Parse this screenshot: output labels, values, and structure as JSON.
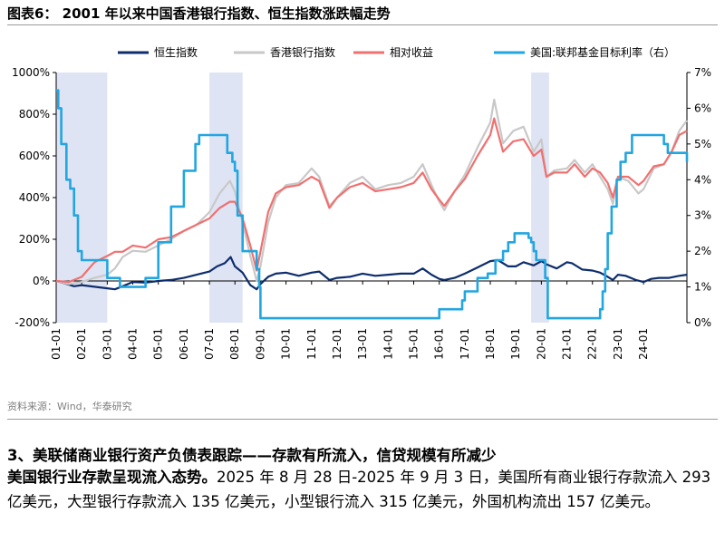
{
  "figure": {
    "title": "图表6：  2001 年以来中国香港银行指数、恒生指数涨跌幅走势",
    "source": "资料来源：Wind，华泰研究"
  },
  "text": {
    "section_heading": "3、美联储商业银行资产负债表跟踪——存款有所流入，信贷规模有所减少",
    "lead": "美国银行业存款呈现流入态势。",
    "body": "2025 年 8 月 28 日-2025 年 9 月 3 日，美国所有商业银行存款流入 293 亿美元，大型银行存款流入 135 亿美元，小型银行流入 315 亿美元，外国机构流出 157 亿美元。"
  },
  "chart_data": {
    "type": "line",
    "x_ticks": [
      "01-01",
      "02-01",
      "03-01",
      "04-01",
      "05-01",
      "06-01",
      "07-01",
      "08-01",
      "09-01",
      "10-01",
      "11-01",
      "12-01",
      "13-01",
      "14-01",
      "15-01",
      "16-01",
      "17-01",
      "18-01",
      "19-01",
      "20-01",
      "21-01",
      "22-01",
      "23-01",
      "24-01"
    ],
    "x_range": [
      2001.0,
      2025.7
    ],
    "y_left": {
      "ticks": [
        "-200%",
        "0%",
        "200%",
        "400%",
        "600%",
        "800%",
        "1000%"
      ],
      "range": [
        -200,
        1000
      ]
    },
    "y_right": {
      "ticks": [
        "0%",
        "1%",
        "2%",
        "3%",
        "4%",
        "5%",
        "6%",
        "7%"
      ],
      "range": [
        0,
        7
      ]
    },
    "grid": false,
    "legend_position": "top",
    "shaded_periods": [
      [
        2001.0,
        2003.0
      ],
      [
        2007.0,
        2008.3
      ],
      [
        2019.6,
        2020.3
      ]
    ],
    "series": [
      {
        "name": "恒生指数",
        "axis": "left",
        "color": "#0d2d6c",
        "x": [
          2001.0,
          2001.3,
          2001.7,
          2002.0,
          2002.5,
          2003.0,
          2003.3,
          2003.6,
          2004.0,
          2004.5,
          2005.0,
          2005.5,
          2006.0,
          2006.5,
          2007.0,
          2007.3,
          2007.6,
          2007.83,
          2008.0,
          2008.3,
          2008.6,
          2008.85,
          2009.0,
          2009.3,
          2009.6,
          2010.0,
          2010.5,
          2011.0,
          2011.3,
          2011.7,
          2012.0,
          2012.5,
          2013.0,
          2013.5,
          2014.0,
          2014.5,
          2015.0,
          2015.35,
          2015.7,
          2016.0,
          2016.2,
          2016.6,
          2017.0,
          2017.5,
          2018.0,
          2018.3,
          2018.7,
          2019.0,
          2019.3,
          2019.7,
          2020.0,
          2020.2,
          2020.6,
          2021.0,
          2021.2,
          2021.6,
          2022.0,
          2022.3,
          2022.6,
          2022.8,
          2023.0,
          2023.3,
          2023.7,
          2024.0,
          2024.3,
          2024.6,
          2025.0,
          2025.4,
          2025.7
        ],
        "y": [
          0,
          -10,
          -25,
          -20,
          -28,
          -35,
          -40,
          -25,
          -5,
          -8,
          0,
          5,
          15,
          30,
          45,
          70,
          85,
          115,
          70,
          40,
          -20,
          -40,
          -15,
          20,
          35,
          40,
          25,
          40,
          45,
          5,
          15,
          20,
          35,
          25,
          30,
          35,
          35,
          60,
          30,
          10,
          5,
          15,
          35,
          65,
          95,
          100,
          70,
          70,
          90,
          75,
          95,
          80,
          60,
          90,
          85,
          55,
          50,
          40,
          20,
          5,
          30,
          25,
          5,
          -5,
          10,
          15,
          15,
          25,
          30
        ]
      },
      {
        "name": "香港银行指数",
        "axis": "left",
        "color": "#c8c8c8",
        "x": [
          2001.0,
          2001.5,
          2002.0,
          2002.5,
          2003.0,
          2003.3,
          2003.6,
          2004.0,
          2004.5,
          2005.0,
          2005.5,
          2006.0,
          2006.5,
          2007.0,
          2007.4,
          2007.8,
          2008.0,
          2008.3,
          2008.6,
          2008.85,
          2009.0,
          2009.3,
          2009.6,
          2010.0,
          2010.5,
          2011.0,
          2011.3,
          2011.7,
          2012.0,
          2012.5,
          2013.0,
          2013.5,
          2014.0,
          2014.5,
          2015.0,
          2015.35,
          2015.7,
          2016.0,
          2016.2,
          2016.6,
          2017.0,
          2017.5,
          2018.0,
          2018.15,
          2018.5,
          2018.9,
          2019.3,
          2019.7,
          2020.0,
          2020.2,
          2020.5,
          2021.0,
          2021.3,
          2021.7,
          2022.0,
          2022.3,
          2022.6,
          2022.8,
          2023.0,
          2023.4,
          2023.8,
          2024.0,
          2024.4,
          2024.8,
          2025.1,
          2025.4,
          2025.7
        ],
        "y": [
          0,
          -15,
          -5,
          15,
          30,
          60,
          115,
          145,
          140,
          170,
          200,
          240,
          270,
          330,
          420,
          480,
          430,
          280,
          120,
          0,
          70,
          280,
          400,
          460,
          470,
          540,
          500,
          360,
          400,
          470,
          500,
          440,
          460,
          470,
          500,
          560,
          460,
          380,
          340,
          430,
          510,
          640,
          760,
          870,
          660,
          720,
          740,
          620,
          680,
          500,
          530,
          540,
          580,
          520,
          560,
          500,
          440,
          370,
          500,
          480,
          420,
          440,
          540,
          560,
          620,
          720,
          770
        ]
      },
      {
        "name": "相对收益",
        "axis": "left",
        "color": "#f07070",
        "x": [
          2001.0,
          2001.5,
          2002.0,
          2002.5,
          2003.0,
          2003.3,
          2003.6,
          2004.0,
          2004.5,
          2005.0,
          2005.5,
          2006.0,
          2006.5,
          2007.0,
          2007.4,
          2007.8,
          2008.0,
          2008.3,
          2008.6,
          2008.85,
          2009.0,
          2009.3,
          2009.6,
          2010.0,
          2010.5,
          2011.0,
          2011.3,
          2011.7,
          2012.0,
          2012.5,
          2013.0,
          2013.5,
          2014.0,
          2014.5,
          2015.0,
          2015.35,
          2015.7,
          2016.0,
          2016.2,
          2016.6,
          2017.0,
          2017.5,
          2018.0,
          2018.15,
          2018.5,
          2018.9,
          2019.3,
          2019.7,
          2020.0,
          2020.2,
          2020.5,
          2021.0,
          2021.3,
          2021.7,
          2022.0,
          2022.3,
          2022.6,
          2022.8,
          2023.0,
          2023.4,
          2023.8,
          2024.0,
          2024.4,
          2024.8,
          2025.1,
          2025.4,
          2025.7
        ],
        "y": [
          0,
          -5,
          20,
          90,
          120,
          140,
          140,
          170,
          160,
          200,
          210,
          240,
          270,
          300,
          350,
          380,
          380,
          300,
          170,
          50,
          140,
          330,
          420,
          450,
          460,
          500,
          480,
          350,
          400,
          450,
          470,
          430,
          440,
          450,
          470,
          520,
          440,
          390,
          360,
          430,
          490,
          600,
          700,
          780,
          620,
          670,
          680,
          600,
          630,
          500,
          520,
          520,
          560,
          500,
          540,
          520,
          470,
          400,
          500,
          500,
          460,
          480,
          550,
          560,
          620,
          700,
          720
        ]
      },
      {
        "name": "美国:联邦基金目标利率（右）",
        "axis": "right",
        "color": "#22a6e0",
        "x": [
          2001.0,
          2001.08,
          2001.2,
          2001.4,
          2001.55,
          2001.7,
          2001.85,
          2002.0,
          2002.9,
          2003.0,
          2003.45,
          2003.5,
          2004.0,
          2004.45,
          2004.5,
          2005.0,
          2005.5,
          2006.0,
          2006.45,
          2006.6,
          2007.6,
          2007.7,
          2007.9,
          2008.0,
          2008.1,
          2008.3,
          2008.8,
          2008.85,
          2008.95,
          2009.0,
          2015.9,
          2016.0,
          2016.9,
          2017.0,
          2017.5,
          2017.9,
          2018.2,
          2018.5,
          2018.7,
          2018.95,
          2019.5,
          2019.6,
          2019.7,
          2019.8,
          2020.15,
          2020.25,
          2022.2,
          2022.3,
          2022.4,
          2022.5,
          2022.6,
          2022.75,
          2022.95,
          2023.1,
          2023.3,
          2023.55,
          2024.7,
          2024.8,
          2024.95,
          2025.7
        ],
        "y": [
          6.5,
          6.0,
          5.0,
          4.0,
          3.75,
          3.0,
          2.0,
          1.75,
          1.75,
          1.25,
          1.25,
          1.0,
          1.0,
          1.0,
          1.25,
          2.25,
          3.25,
          4.25,
          5.0,
          5.25,
          5.25,
          4.75,
          4.5,
          4.25,
          3.0,
          2.0,
          2.0,
          1.5,
          1.0,
          0.125,
          0.125,
          0.375,
          0.625,
          0.875,
          1.25,
          1.375,
          1.75,
          2.0,
          2.25,
          2.5,
          2.375,
          2.25,
          2.0,
          1.75,
          1.25,
          0.125,
          0.125,
          0.375,
          0.875,
          1.5,
          2.5,
          3.25,
          4.0,
          4.5,
          4.75,
          5.25,
          5.25,
          5.0,
          4.75,
          4.5
        ]
      }
    ]
  }
}
